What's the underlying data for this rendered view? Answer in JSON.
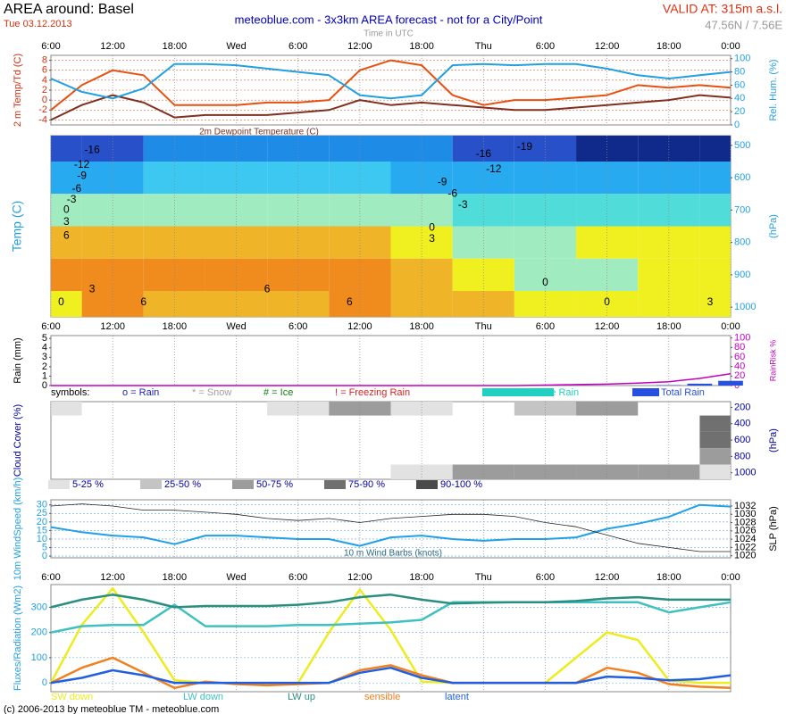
{
  "header": {
    "title": "AREA around: Basel",
    "date": "Tue 03.12.2013",
    "subtitle": "meteoblue.com - 3x3km AREA forecast - not for a City/Point",
    "time_note": "Time in UTC",
    "valid": "VALID AT: 315m a.s.l.",
    "coords": "47.56N / 7.56E"
  },
  "footer": "(c) 2006-2013 by meteoblue TM - meteoblue.com",
  "time_axis": {
    "xlim": [
      0,
      66
    ],
    "xticks": [
      {
        "value": 0,
        "label": "6:00"
      },
      {
        "value": 6,
        "label": "12:00"
      },
      {
        "value": 12,
        "label": "18:00"
      },
      {
        "value": 18,
        "label": "Wed"
      },
      {
        "value": 24,
        "label": "6:00"
      },
      {
        "value": 30,
        "label": "12:00"
      },
      {
        "value": 36,
        "label": "18:00"
      },
      {
        "value": 42,
        "label": "Thu"
      },
      {
        "value": 48,
        "label": "6:00"
      },
      {
        "value": 54,
        "label": "12:00"
      },
      {
        "value": 60,
        "label": "18:00"
      },
      {
        "value": 66,
        "label": "0:00"
      }
    ],
    "x": [
      0,
      3,
      6,
      9,
      12,
      15,
      18,
      21,
      24,
      27,
      30,
      33,
      36,
      39,
      42,
      45,
      48,
      51,
      54,
      57,
      60,
      63,
      66
    ]
  },
  "chart_data": [
    {
      "type": "line",
      "ylabel": "2 m Temp/Td (C)",
      "y2label": "Rel. Hum. (%)",
      "annotation": "2m Dewpoint Temperature (C)",
      "ylim": [
        -5,
        9
      ],
      "yticks": [
        -4,
        -2,
        0,
        2,
        4,
        6,
        8
      ],
      "y2lim": [
        0,
        105
      ],
      "y2ticks": [
        0,
        20,
        40,
        60,
        80,
        100
      ],
      "grid": true,
      "series": [
        {
          "color": "#e85010",
          "values": [
            -2,
            3,
            6,
            5,
            -1,
            -1,
            -1,
            -0.5,
            -0.5,
            0,
            6,
            8,
            7,
            1,
            -1,
            0,
            0,
            0.5,
            1,
            3,
            2.5,
            3,
            2.5
          ]
        },
        {
          "name": "2m Dewpoint Temperature (C)",
          "color": "#803020",
          "values": [
            -4,
            -1,
            1,
            -0.5,
            -3.5,
            -3,
            -3,
            -3,
            -2.5,
            -2,
            0,
            -1,
            -0.5,
            -1,
            -1.5,
            -2,
            -2,
            -1.5,
            -1,
            -0.5,
            0,
            1,
            0.5
          ]
        },
        {
          "color": "#20a0e0",
          "axis": "y2",
          "values": [
            70,
            50,
            40,
            55,
            92,
            92,
            90,
            85,
            80,
            75,
            45,
            40,
            45,
            90,
            92,
            90,
            92,
            92,
            85,
            75,
            70,
            75,
            80
          ]
        }
      ]
    },
    {
      "type": "heatmap",
      "ylabel": "Temp (C)",
      "y2label": "(hPa)",
      "y2lim": [
        1030,
        470
      ],
      "y2ticks": [
        500,
        600,
        700,
        800,
        900,
        1000
      ],
      "x": [
        0,
        6,
        12,
        18,
        24,
        30,
        36,
        42,
        48,
        54,
        60,
        66
      ],
      "levels": [
        500,
        600,
        700,
        800,
        900,
        1000
      ],
      "z": [
        [
          -18,
          -17,
          -16,
          -16,
          -16,
          -16,
          -16,
          -17,
          -19,
          -20,
          -20,
          -20
        ],
        [
          -10,
          -10,
          -9,
          -9,
          -9,
          -9,
          -10,
          -11,
          -12,
          -12,
          -12,
          -11
        ],
        [
          -2,
          -1,
          -1,
          -1,
          -1,
          -2,
          -3,
          -5,
          -6,
          -5,
          -5,
          -4
        ],
        [
          4,
          4,
          4,
          4,
          3,
          3,
          1,
          -1,
          -1,
          0,
          0,
          1
        ],
        [
          7,
          8,
          8,
          8,
          7,
          6,
          3,
          1,
          -0.5,
          -0.5,
          1,
          2
        ],
        [
          2,
          6,
          3,
          4,
          5,
          6,
          4,
          3,
          1,
          0,
          2,
          2
        ]
      ],
      "bounds": [
        -19,
        -16,
        -12,
        -9,
        -6,
        -3,
        0,
        3,
        6
      ],
      "colors": [
        "#102a8c",
        "#2850c8",
        "#1e8ce6",
        "#28aaf0",
        "#3cc8f0",
        "#50dcd8",
        "#a0ecc0",
        "#f0f020",
        "#f0b428",
        "#f08c1e"
      ],
      "contour_labels": [
        {
          "value": -16,
          "x": 4,
          "y": 515
        },
        {
          "value": -12,
          "x": 3,
          "y": 560
        },
        {
          "value": -9,
          "x": 3,
          "y": 595
        },
        {
          "value": -6,
          "x": 2.5,
          "y": 635
        },
        {
          "value": -3,
          "x": 2,
          "y": 668
        },
        {
          "value": 0,
          "x": 1.5,
          "y": 700
        },
        {
          "value": 3,
          "x": 1.5,
          "y": 737
        },
        {
          "value": 6,
          "x": 1.5,
          "y": 780
        },
        {
          "value": 3,
          "x": 4,
          "y": 945
        },
        {
          "value": 6,
          "x": 21,
          "y": 945
        },
        {
          "value": 6,
          "x": 9,
          "y": 985
        },
        {
          "value": 0,
          "x": 1,
          "y": 985
        },
        {
          "value": 6,
          "x": 29,
          "y": 985
        },
        {
          "value": -16,
          "x": 42,
          "y": 528
        },
        {
          "value": -19,
          "x": 46,
          "y": 505
        },
        {
          "value": -12,
          "x": 43,
          "y": 575
        },
        {
          "value": -9,
          "x": 38,
          "y": 615
        },
        {
          "value": -6,
          "x": 39,
          "y": 650
        },
        {
          "value": -3,
          "x": 40,
          "y": 685
        },
        {
          "value": 0,
          "x": 37,
          "y": 755
        },
        {
          "value": 3,
          "x": 37,
          "y": 790
        },
        {
          "value": 0,
          "x": 48,
          "y": 925
        },
        {
          "value": 0,
          "x": 54,
          "y": 985
        },
        {
          "value": 3,
          "x": 64,
          "y": 985
        }
      ]
    },
    {
      "type": "bar",
      "ylabel": "Rain (mm)",
      "y2label": "RainRisk %",
      "ylim": [
        0,
        5.3
      ],
      "yticks": [
        0,
        1,
        2,
        3,
        4,
        5
      ],
      "y2lim": [
        0,
        105
      ],
      "y2ticks": [
        0,
        20,
        40,
        60,
        80,
        100
      ],
      "grid": false,
      "symbols": {
        "title": "symbols:",
        "items": [
          {
            "label": "o = Rain",
            "color": "#2020c0"
          },
          {
            "label": "* = Snow",
            "color": "#a0a0a0"
          },
          {
            "label": "# = Ice",
            "color": "#108010"
          },
          {
            "label": "! = Freezing Rain",
            "color": "#e02020"
          }
        ]
      },
      "series": [
        {
          "name": "Convective Rain",
          "color": "#20d0c0",
          "values": [
            0,
            0,
            0,
            0,
            0,
            0,
            0,
            0,
            0,
            0,
            0,
            0,
            0,
            0,
            0,
            0,
            0,
            0,
            0,
            0,
            0,
            0,
            0
          ]
        },
        {
          "name": "Total Rain",
          "color": "#2850e0",
          "values": [
            0,
            0,
            0,
            0,
            0,
            0,
            0,
            0,
            0,
            0,
            0,
            0,
            0,
            0,
            0,
            0,
            0,
            0,
            0,
            0,
            0.05,
            0.2,
            0.5
          ]
        },
        {
          "color": "#c000c0",
          "axis": "y2",
          "values": [
            0,
            0,
            0,
            0,
            0,
            0,
            0,
            0,
            0,
            0,
            0,
            0,
            0,
            0,
            0,
            0,
            1,
            2,
            3,
            5,
            8,
            15,
            25
          ]
        }
      ]
    },
    {
      "type": "heatmap",
      "ylabel": "Cloud Cover (%)",
      "y2label": "(hPa)",
      "y2lim": [
        1080,
        130
      ],
      "y2ticks": [
        200,
        400,
        600,
        800,
        1000
      ],
      "x": [
        0,
        6,
        12,
        18,
        24,
        30,
        36,
        42,
        48,
        54,
        60,
        66
      ],
      "levels": [
        200,
        400,
        600,
        800,
        1000
      ],
      "z": [
        [
          15,
          0,
          0,
          0,
          20,
          60,
          15,
          0,
          35,
          60,
          0,
          0
        ],
        [
          0,
          0,
          0,
          0,
          0,
          0,
          0,
          0,
          0,
          0,
          0,
          80
        ],
        [
          0,
          0,
          0,
          0,
          0,
          0,
          0,
          0,
          0,
          0,
          0,
          85
        ],
        [
          0,
          0,
          0,
          0,
          0,
          0,
          0,
          0,
          0,
          0,
          0,
          60
        ],
        [
          0,
          0,
          0,
          0,
          0,
          0,
          15,
          60,
          70,
          70,
          65,
          15
        ]
      ],
      "bounds": [
        5,
        25,
        50,
        75,
        90
      ],
      "legend": [
        {
          "label": "5-25 %",
          "color": "#e2e2e2"
        },
        {
          "label": "25-50 %",
          "color": "#c4c4c4"
        },
        {
          "label": "50-75 %",
          "color": "#9c9c9c"
        },
        {
          "label": "75-90 %",
          "color": "#707070"
        },
        {
          "label": "90-100 %",
          "color": "#4a4a4a"
        }
      ]
    },
    {
      "type": "line",
      "ylabel": "10m WindSpeed (km/h)",
      "y2label": "SLP (hPa)",
      "annotation": "10 m Wind Barbs (knots)",
      "ylim": [
        -1,
        33
      ],
      "yticks": [
        0,
        5,
        10,
        15,
        20,
        25,
        30
      ],
      "y2lim": [
        1019.5,
        1033.5
      ],
      "y2ticks": [
        1020,
        1022,
        1024,
        1026,
        1028,
        1030,
        1032
      ],
      "grid": true,
      "series": [
        {
          "color": "#20a0e8",
          "values": [
            17,
            14,
            12,
            11,
            7,
            12,
            12,
            11,
            10,
            10,
            6,
            11,
            12,
            10,
            9,
            10,
            10,
            11,
            16,
            19,
            23,
            30,
            29
          ]
        },
        {
          "color": "#222222",
          "axis": "y2",
          "values": [
            1032,
            1032.5,
            1032,
            1031,
            1031,
            1030.5,
            1030,
            1029,
            1028.5,
            1029,
            1028,
            1029,
            1029.5,
            1030,
            1030,
            1029.5,
            1028,
            1027,
            1025,
            1023,
            1022,
            1021,
            1021
          ]
        }
      ]
    },
    {
      "type": "line",
      "ylabel": "Fluxes/Radiation (Wm2)",
      "ylim": [
        -35,
        390
      ],
      "yticks": [
        0,
        100,
        200,
        300
      ],
      "grid": true,
      "series": [
        {
          "name": "SW down",
          "color": "#ecec20",
          "values": [
            0,
            230,
            375,
            200,
            10,
            0,
            0,
            0,
            0,
            200,
            370,
            210,
            5,
            0,
            0,
            0,
            0,
            100,
            200,
            170,
            10,
            0,
            0
          ]
        },
        {
          "name": "LW down",
          "color": "#40c0c0",
          "values": [
            200,
            225,
            230,
            230,
            310,
            225,
            225,
            225,
            230,
            230,
            235,
            240,
            250,
            320,
            320,
            320,
            320,
            320,
            320,
            320,
            280,
            300,
            320
          ]
        },
        {
          "name": "LW up",
          "color": "#2a8f80",
          "values": [
            300,
            330,
            350,
            330,
            300,
            305,
            305,
            305,
            310,
            320,
            340,
            350,
            330,
            315,
            318,
            320,
            320,
            325,
            335,
            340,
            330,
            330,
            330
          ]
        },
        {
          "name": "sensible",
          "color": "#f08020",
          "values": [
            0,
            60,
            100,
            40,
            -20,
            5,
            -5,
            -10,
            -5,
            0,
            50,
            70,
            30,
            0,
            0,
            0,
            0,
            0,
            60,
            40,
            -5,
            -15,
            -20
          ]
        },
        {
          "name": "latent",
          "color": "#2060e0",
          "values": [
            0,
            20,
            50,
            30,
            0,
            0,
            0,
            0,
            0,
            0,
            40,
            60,
            20,
            0,
            0,
            0,
            0,
            0,
            25,
            20,
            10,
            15,
            30
          ]
        }
      ]
    }
  ]
}
